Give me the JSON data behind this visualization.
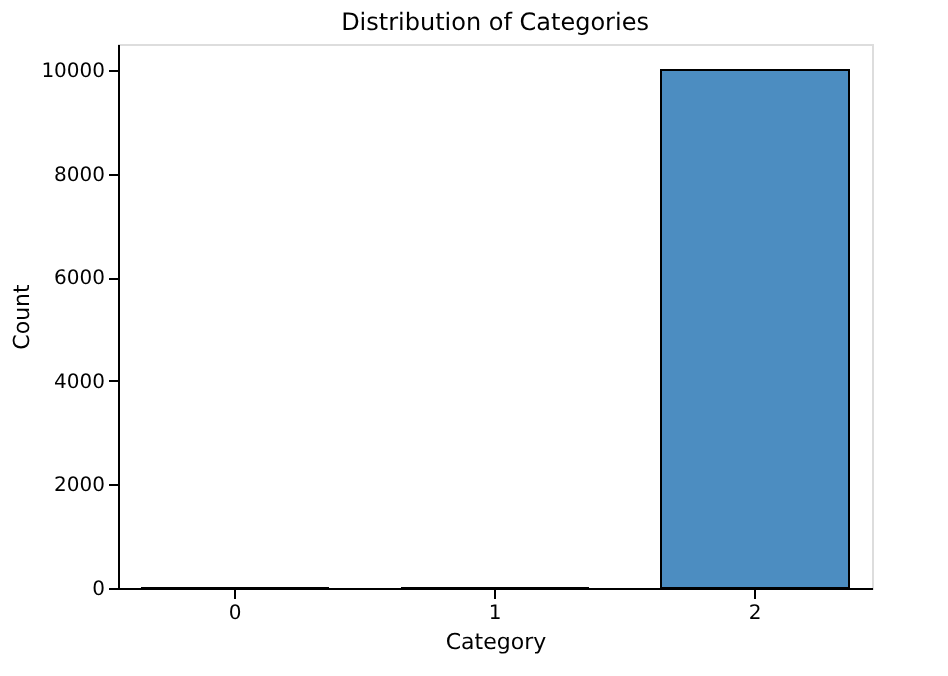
{
  "chart_data": {
    "type": "bar",
    "title": "Distribution of Categories",
    "xlabel": "Category",
    "ylabel": "Count",
    "categories": [
      "0",
      "1",
      "2"
    ],
    "values": [
      0,
      0,
      10000
    ],
    "color": "#4c8dc1",
    "ylim": [
      0,
      10500
    ],
    "yticks": [
      0,
      2000,
      4000,
      6000,
      8000,
      10000
    ],
    "grid": false
  }
}
